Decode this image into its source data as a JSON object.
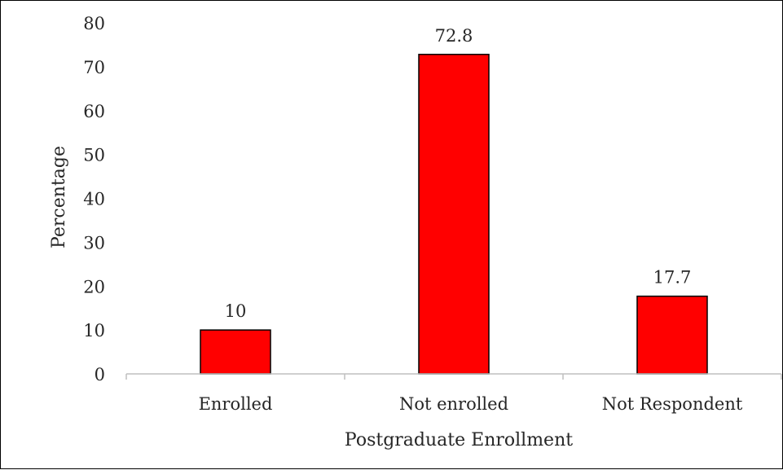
{
  "chart_data": {
    "type": "bar",
    "categories": [
      "Enrolled",
      "Not enrolled",
      "Not Respondent"
    ],
    "values": [
      10,
      72.8,
      17.7
    ],
    "data_labels": [
      "10",
      "72.8",
      "17.7"
    ],
    "xlabel": "Postgraduate Enrollment",
    "ylabel": "Percentage",
    "ylim": [
      0,
      80
    ],
    "yticks": [
      0,
      10,
      20,
      30,
      40,
      50,
      60,
      70,
      80
    ],
    "grid": false,
    "legend": "none",
    "colors": {
      "bar_fill": "#ff0000",
      "bar_stroke": "#000000",
      "axis": "#bfbfbf"
    }
  }
}
